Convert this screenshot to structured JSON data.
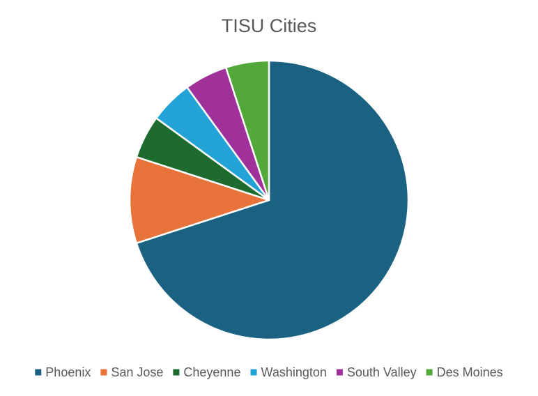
{
  "chart_data": {
    "type": "pie",
    "title": "TISU Cities",
    "categories": [
      "Phoenix",
      "San Jose",
      "Cheyenne",
      "Washington",
      "South Valley",
      "Des Moines"
    ],
    "values": [
      70,
      10,
      5,
      5,
      5,
      5
    ],
    "colors": [
      "#1b6282",
      "#e8733a",
      "#1e6b2f",
      "#23a2d6",
      "#a0309a",
      "#53a83a"
    ],
    "legend_position": "bottom",
    "start_angle_deg": 0,
    "direction": "clockwise"
  }
}
